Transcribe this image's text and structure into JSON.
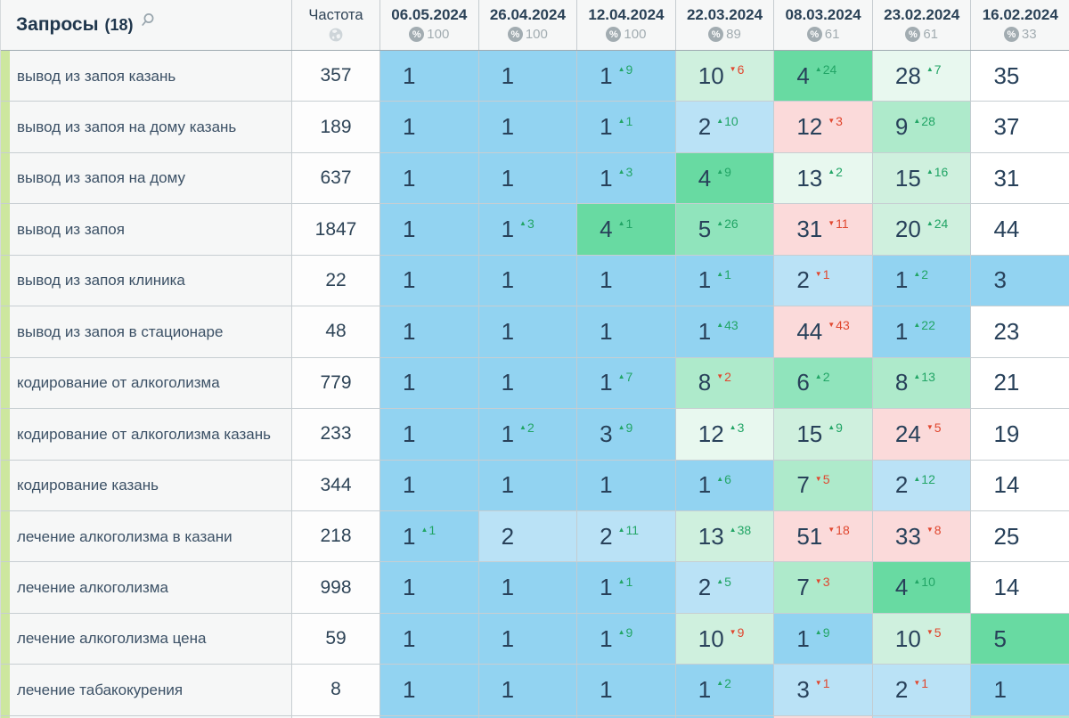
{
  "header": {
    "queries_label": "Запросы",
    "queries_count": "(18)",
    "frequency_label": "Частота",
    "percent_symbol": "%",
    "dates": [
      {
        "label": "06.05.2024",
        "percent": "100"
      },
      {
        "label": "26.04.2024",
        "percent": "100"
      },
      {
        "label": "12.04.2024",
        "percent": "100"
      },
      {
        "label": "22.03.2024",
        "percent": "89"
      },
      {
        "label": "08.03.2024",
        "percent": "61"
      },
      {
        "label": "23.02.2024",
        "percent": "61"
      },
      {
        "label": "16.02.2024",
        "percent": "33"
      }
    ]
  },
  "palette": {
    "blue": "#92D3F1",
    "bluelight": "#BAE2F6",
    "green": "#68DAA2",
    "greenmid": "#90E4BC",
    "greenlight": "#AEEACB",
    "mint": "#CFF0DE",
    "mintlight": "#E8F8EF",
    "pink": "#FBDADA",
    "white": "#FFFFFF",
    "delta_up": "#22A566",
    "delta_down": "#E0472F",
    "row_strip": "#CDE79F"
  },
  "rows": [
    {
      "keyword": "вывод из запоя казань",
      "frequency": "357",
      "cells": [
        {
          "v": "1",
          "bg": "blue"
        },
        {
          "v": "1",
          "bg": "blue"
        },
        {
          "v": "1",
          "d": "9",
          "dir": "up",
          "bg": "blue"
        },
        {
          "v": "10",
          "d": "6",
          "dir": "down",
          "bg": "mint"
        },
        {
          "v": "4",
          "d": "24",
          "dir": "up",
          "bg": "green"
        },
        {
          "v": "28",
          "d": "7",
          "dir": "up",
          "bg": "mintlight"
        },
        {
          "v": "35",
          "bg": "white"
        }
      ]
    },
    {
      "keyword": "вывод из запоя на дому казань",
      "frequency": "189",
      "cells": [
        {
          "v": "1",
          "bg": "blue"
        },
        {
          "v": "1",
          "bg": "blue"
        },
        {
          "v": "1",
          "d": "1",
          "dir": "up",
          "bg": "blue"
        },
        {
          "v": "2",
          "d": "10",
          "dir": "up",
          "bg": "bluelight"
        },
        {
          "v": "12",
          "d": "3",
          "dir": "down",
          "bg": "pink"
        },
        {
          "v": "9",
          "d": "28",
          "dir": "up",
          "bg": "greenlight"
        },
        {
          "v": "37",
          "bg": "white"
        }
      ]
    },
    {
      "keyword": "вывод из запоя на дому",
      "frequency": "637",
      "cells": [
        {
          "v": "1",
          "bg": "blue"
        },
        {
          "v": "1",
          "bg": "blue"
        },
        {
          "v": "1",
          "d": "3",
          "dir": "up",
          "bg": "blue"
        },
        {
          "v": "4",
          "d": "9",
          "dir": "up",
          "bg": "green"
        },
        {
          "v": "13",
          "d": "2",
          "dir": "up",
          "bg": "mintlight"
        },
        {
          "v": "15",
          "d": "16",
          "dir": "up",
          "bg": "mint"
        },
        {
          "v": "31",
          "bg": "white"
        }
      ]
    },
    {
      "keyword": "вывод из запоя",
      "frequency": "1847",
      "cells": [
        {
          "v": "1",
          "bg": "blue"
        },
        {
          "v": "1",
          "d": "3",
          "dir": "up",
          "bg": "blue"
        },
        {
          "v": "4",
          "d": "1",
          "dir": "up",
          "bg": "green"
        },
        {
          "v": "5",
          "d": "26",
          "dir": "up",
          "bg": "greenmid"
        },
        {
          "v": "31",
          "d": "11",
          "dir": "down",
          "bg": "pink"
        },
        {
          "v": "20",
          "d": "24",
          "dir": "up",
          "bg": "mint"
        },
        {
          "v": "44",
          "bg": "white"
        }
      ]
    },
    {
      "keyword": "вывод из запоя клиника",
      "frequency": "22",
      "cells": [
        {
          "v": "1",
          "bg": "blue"
        },
        {
          "v": "1",
          "bg": "blue"
        },
        {
          "v": "1",
          "bg": "blue"
        },
        {
          "v": "1",
          "d": "1",
          "dir": "up",
          "bg": "blue"
        },
        {
          "v": "2",
          "d": "1",
          "dir": "down",
          "bg": "bluelight"
        },
        {
          "v": "1",
          "d": "2",
          "dir": "up",
          "bg": "blue"
        },
        {
          "v": "3",
          "bg": "blue"
        }
      ]
    },
    {
      "keyword": "вывод из запоя в стационаре",
      "frequency": "48",
      "cells": [
        {
          "v": "1",
          "bg": "blue"
        },
        {
          "v": "1",
          "bg": "blue"
        },
        {
          "v": "1",
          "bg": "blue"
        },
        {
          "v": "1",
          "d": "43",
          "dir": "up",
          "bg": "blue"
        },
        {
          "v": "44",
          "d": "43",
          "dir": "down",
          "bg": "pink"
        },
        {
          "v": "1",
          "d": "22",
          "dir": "up",
          "bg": "blue"
        },
        {
          "v": "23",
          "bg": "white"
        }
      ]
    },
    {
      "keyword": "кодирование от алкоголизма",
      "frequency": "779",
      "cells": [
        {
          "v": "1",
          "bg": "blue"
        },
        {
          "v": "1",
          "bg": "blue"
        },
        {
          "v": "1",
          "d": "7",
          "dir": "up",
          "bg": "blue"
        },
        {
          "v": "8",
          "d": "2",
          "dir": "down",
          "bg": "greenlight"
        },
        {
          "v": "6",
          "d": "2",
          "dir": "up",
          "bg": "greenmid"
        },
        {
          "v": "8",
          "d": "13",
          "dir": "up",
          "bg": "greenlight"
        },
        {
          "v": "21",
          "bg": "white"
        }
      ]
    },
    {
      "keyword": "кодирование от алкоголизма казань",
      "frequency": "233",
      "cells": [
        {
          "v": "1",
          "bg": "blue"
        },
        {
          "v": "1",
          "d": "2",
          "dir": "up",
          "bg": "blue"
        },
        {
          "v": "3",
          "d": "9",
          "dir": "up",
          "bg": "blue"
        },
        {
          "v": "12",
          "d": "3",
          "dir": "up",
          "bg": "mintlight"
        },
        {
          "v": "15",
          "d": "9",
          "dir": "up",
          "bg": "mint"
        },
        {
          "v": "24",
          "d": "5",
          "dir": "down",
          "bg": "pink"
        },
        {
          "v": "19",
          "bg": "white"
        }
      ]
    },
    {
      "keyword": "кодирование казань",
      "frequency": "344",
      "cells": [
        {
          "v": "1",
          "bg": "blue"
        },
        {
          "v": "1",
          "bg": "blue"
        },
        {
          "v": "1",
          "bg": "blue"
        },
        {
          "v": "1",
          "d": "6",
          "dir": "up",
          "bg": "blue"
        },
        {
          "v": "7",
          "d": "5",
          "dir": "down",
          "bg": "greenlight"
        },
        {
          "v": "2",
          "d": "12",
          "dir": "up",
          "bg": "bluelight"
        },
        {
          "v": "14",
          "bg": "white"
        }
      ]
    },
    {
      "keyword": "лечение алкоголизма в казани",
      "frequency": "218",
      "cells": [
        {
          "v": "1",
          "d": "1",
          "dir": "up",
          "bg": "blue"
        },
        {
          "v": "2",
          "bg": "bluelight"
        },
        {
          "v": "2",
          "d": "11",
          "dir": "up",
          "bg": "bluelight"
        },
        {
          "v": "13",
          "d": "38",
          "dir": "up",
          "bg": "mint"
        },
        {
          "v": "51",
          "d": "18",
          "dir": "down",
          "bg": "pink"
        },
        {
          "v": "33",
          "d": "8",
          "dir": "down",
          "bg": "pink"
        },
        {
          "v": "25",
          "bg": "white"
        }
      ]
    },
    {
      "keyword": "лечение алкоголизма",
      "frequency": "998",
      "cells": [
        {
          "v": "1",
          "bg": "blue"
        },
        {
          "v": "1",
          "bg": "blue"
        },
        {
          "v": "1",
          "d": "1",
          "dir": "up",
          "bg": "blue"
        },
        {
          "v": "2",
          "d": "5",
          "dir": "up",
          "bg": "bluelight"
        },
        {
          "v": "7",
          "d": "3",
          "dir": "down",
          "bg": "greenlight"
        },
        {
          "v": "4",
          "d": "10",
          "dir": "up",
          "bg": "green"
        },
        {
          "v": "14",
          "bg": "white"
        }
      ]
    },
    {
      "keyword": "лечение алкоголизма цена",
      "frequency": "59",
      "cells": [
        {
          "v": "1",
          "bg": "blue"
        },
        {
          "v": "1",
          "bg": "blue"
        },
        {
          "v": "1",
          "d": "9",
          "dir": "up",
          "bg": "blue"
        },
        {
          "v": "10",
          "d": "9",
          "dir": "down",
          "bg": "mint"
        },
        {
          "v": "1",
          "d": "9",
          "dir": "up",
          "bg": "blue"
        },
        {
          "v": "10",
          "d": "5",
          "dir": "down",
          "bg": "mint"
        },
        {
          "v": "5",
          "bg": "green"
        }
      ]
    },
    {
      "keyword": "лечение табакокурения",
      "frequency": "8",
      "cells": [
        {
          "v": "1",
          "bg": "blue"
        },
        {
          "v": "1",
          "bg": "blue"
        },
        {
          "v": "1",
          "bg": "blue"
        },
        {
          "v": "1",
          "d": "2",
          "dir": "up",
          "bg": "blue"
        },
        {
          "v": "3",
          "d": "1",
          "dir": "down",
          "bg": "bluelight"
        },
        {
          "v": "2",
          "d": "1",
          "dir": "down",
          "bg": "bluelight"
        },
        {
          "v": "1",
          "bg": "blue"
        }
      ]
    }
  ],
  "partial_row": {
    "bgs": [
      "blue",
      "blue",
      "blue",
      "blue",
      "pink",
      "bluelight",
      "greenlight"
    ]
  }
}
